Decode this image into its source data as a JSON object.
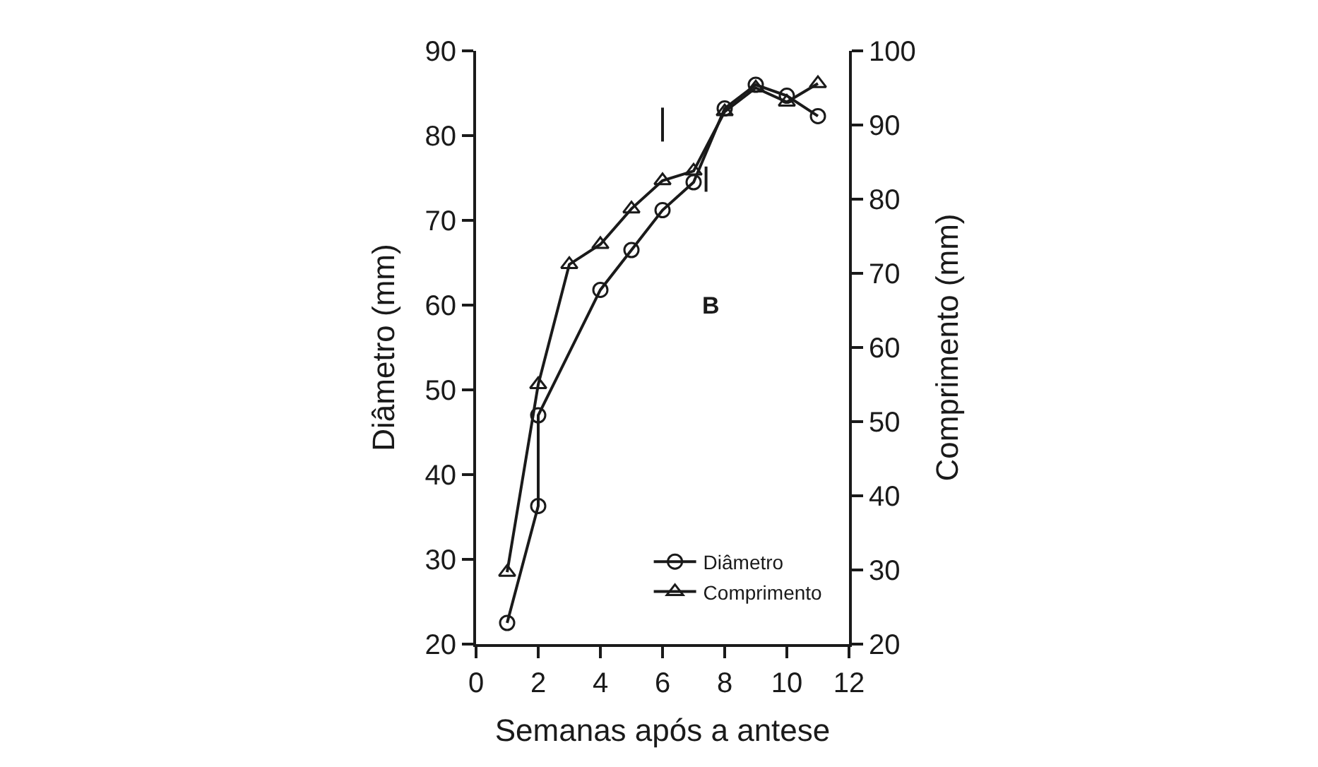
{
  "chart_data": {
    "type": "line",
    "xlabel": "Semanas após a antese",
    "ylabel": "Diâmetro (mm)",
    "y2label": "Comprimento (mm)",
    "xlim": [
      0,
      12
    ],
    "xticks": [
      0,
      2,
      4,
      6,
      8,
      10,
      12
    ],
    "ylim": [
      20,
      90
    ],
    "yticks": [
      20,
      30,
      40,
      50,
      60,
      70,
      80,
      90
    ],
    "y2lim": [
      20,
      100
    ],
    "y2ticks": [
      20,
      30,
      40,
      50,
      60,
      70,
      80,
      90,
      100
    ],
    "legend": "bottom right",
    "line_style": "solid",
    "annotations": [
      "B"
    ],
    "series": [
      {
        "name": "Diâmetro",
        "color": "#1a1a1a",
        "marker": "circle",
        "x": [
          1,
          2,
          2,
          4,
          5,
          6,
          7,
          8,
          9,
          10,
          11
        ],
        "values": [
          22.5,
          36.3,
          47,
          61.8,
          66.5,
          71.2,
          74.5,
          83.2,
          86,
          84.7,
          82.3
        ]
      },
      {
        "name": "Comprimento",
        "color": "#1a1a1a",
        "marker": "triangle",
        "axis": "y2",
        "x": [
          1,
          2,
          3,
          4,
          5,
          6,
          7,
          8,
          9,
          10,
          11
        ],
        "values": [
          29.7,
          55,
          71.2,
          73.9,
          78.7,
          82.5,
          83.8,
          91.8,
          95,
          93.1,
          95.6
        ]
      },
      {
        "type": "line",
        "color": "#1a1a1a",
        "x": [
          6,
          6
        ],
        "values": [
          79.3,
          83.3
        ]
      },
      {
        "type": "line",
        "color": "#1a1a1a",
        "axis": "y2",
        "x": [
          7.4,
          7.4
        ],
        "values": [
          81,
          84.4
        ]
      }
    ]
  }
}
